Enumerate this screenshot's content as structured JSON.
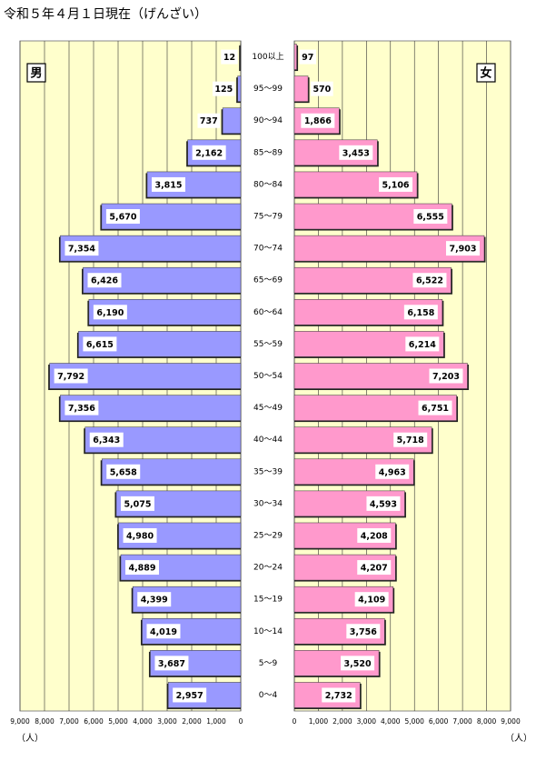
{
  "chart_data": {
    "type": "population-pyramid",
    "title": "令和５年４月１日現在（げんざい）",
    "x_label": "（人）",
    "categories": [
      "100以上",
      "95～99",
      "90～94",
      "85～89",
      "80～84",
      "75～79",
      "70～74",
      "65～69",
      "60～64",
      "55～59",
      "50～54",
      "45～49",
      "40～44",
      "35～39",
      "30～34",
      "25～29",
      "20～24",
      "15～19",
      "10～14",
      "5～9",
      "0～4"
    ],
    "series": [
      {
        "name": "男",
        "color": "#9999ff",
        "values": [
          12,
          125,
          737,
          2162,
          3815,
          5670,
          7354,
          6426,
          6190,
          6615,
          7792,
          7356,
          6343,
          5658,
          5075,
          4980,
          4889,
          4399,
          4019,
          3687,
          2957
        ],
        "value_labels": [
          "12",
          "125",
          "737",
          "2,162",
          "3,815",
          "5,670",
          "7,354",
          "6,426",
          "6,190",
          "6,615",
          "7,792",
          "7,356",
          "6,343",
          "5,658",
          "5,075",
          "4,980",
          "4,889",
          "4,399",
          "4,019",
          "3,687",
          "2,957"
        ]
      },
      {
        "name": "女",
        "color": "#ff99cc",
        "values": [
          97,
          570,
          1866,
          3453,
          5106,
          6555,
          7903,
          6522,
          6158,
          6214,
          7203,
          6751,
          5718,
          4963,
          4593,
          4208,
          4207,
          4109,
          3756,
          3520,
          2732
        ],
        "value_labels": [
          "97",
          "570",
          "1,866",
          "3,453",
          "5,106",
          "6,555",
          "7,903",
          "6,522",
          "6,158",
          "6,214",
          "7,203",
          "6,751",
          "5,718",
          "4,963",
          "4,593",
          "4,208",
          "4,207",
          "4,109",
          "3,756",
          "3,520",
          "2,732"
        ]
      }
    ],
    "xlim": [
      0,
      9000
    ],
    "xticks": [
      0,
      {
        "value": 1000,
        "label": "1,000"
      },
      {
        "value": 2000,
        "label": "2,000"
      },
      {
        "value": 3000,
        "label": "3,000"
      },
      {
        "value": 4000,
        "label": "4,000"
      },
      {
        "value": 5000,
        "label": "5,000"
      },
      {
        "value": 6000,
        "label": "6,000"
      },
      {
        "value": 7000,
        "label": "7,000"
      },
      {
        "value": 8000,
        "label": "8,000"
      },
      {
        "value": 9000,
        "label": "9,000"
      }
    ],
    "grid": true
  }
}
